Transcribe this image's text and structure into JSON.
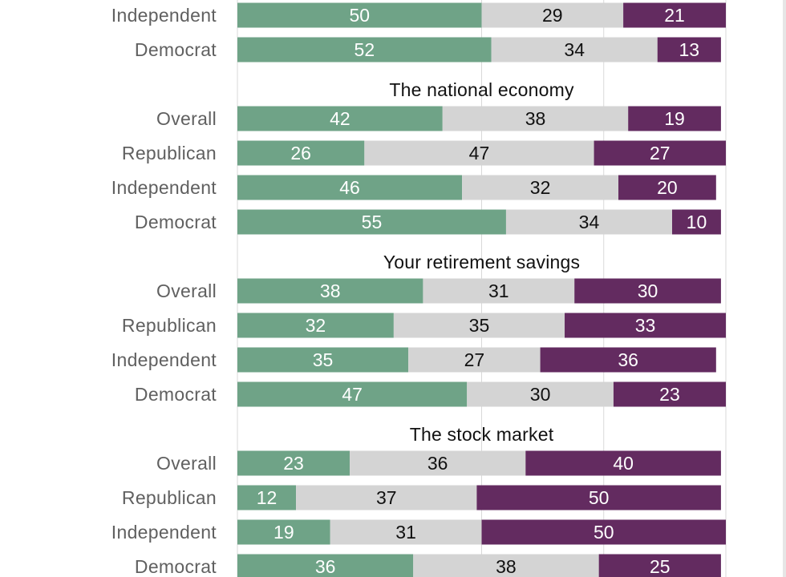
{
  "colors": {
    "positive": "#6fa387",
    "neutral": "#d4d4d4",
    "negative": "#632b60",
    "positive_text": "#ffffff",
    "neutral_text": "#111111",
    "negative_text": "#ffffff",
    "gridline": "#d9d9d9",
    "label": "#606060",
    "title": "#111111"
  },
  "chart_data": {
    "type": "bar",
    "orientation": "horizontal",
    "stacked": true,
    "grid": true,
    "xlim": [
      0,
      100
    ],
    "segments": [
      "positive",
      "neutral",
      "negative"
    ],
    "groups": [
      {
        "title": "",
        "rows": [
          {
            "label": "Independent",
            "values": [
              50,
              29,
              21
            ]
          },
          {
            "label": "Democrat",
            "values": [
              52,
              34,
              13
            ]
          }
        ]
      },
      {
        "title": "The national economy",
        "rows": [
          {
            "label": "Overall",
            "values": [
              42,
              38,
              19
            ]
          },
          {
            "label": "Republican",
            "values": [
              26,
              47,
              27
            ]
          },
          {
            "label": "Independent",
            "values": [
              46,
              32,
              20
            ]
          },
          {
            "label": "Democrat",
            "values": [
              55,
              34,
              10
            ]
          }
        ]
      },
      {
        "title": "Your retirement savings",
        "rows": [
          {
            "label": "Overall",
            "values": [
              38,
              31,
              30
            ]
          },
          {
            "label": "Republican",
            "values": [
              32,
              35,
              33
            ]
          },
          {
            "label": "Independent",
            "values": [
              35,
              27,
              36
            ]
          },
          {
            "label": "Democrat",
            "values": [
              47,
              30,
              23
            ]
          }
        ]
      },
      {
        "title": "The stock market",
        "rows": [
          {
            "label": "Overall",
            "values": [
              23,
              36,
              40
            ]
          },
          {
            "label": "Republican",
            "values": [
              12,
              37,
              50
            ]
          },
          {
            "label": "Independent",
            "values": [
              19,
              31,
              50
            ]
          },
          {
            "label": "Democrat",
            "values": [
              36,
              38,
              25
            ]
          }
        ]
      }
    ]
  }
}
